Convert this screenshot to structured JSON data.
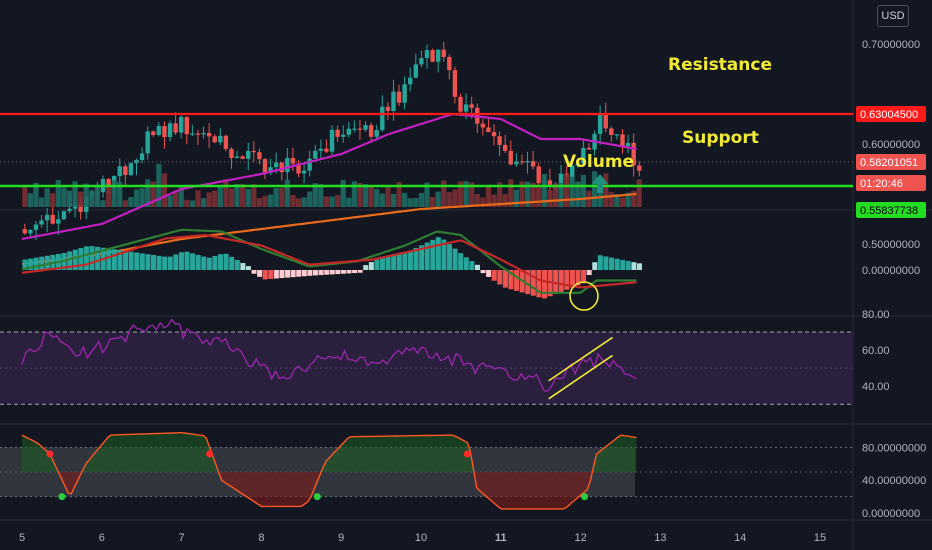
{
  "currency_button": "USD",
  "annotations": {
    "resistance": "Resistance",
    "support": "Support",
    "volume": "Volume"
  },
  "colors": {
    "background": "#131722",
    "up": "#26a69a",
    "down": "#ef5350",
    "resistance": "#ff1a1a",
    "support": "#22dd22",
    "ma_fast": "#c31fc3",
    "ma_slow": "#e86a1a",
    "annotation": "#f0ea37",
    "rsi_fill": "#2a1f3d",
    "rsi_line": "#9c27b0"
  },
  "chart_data": [
    {
      "type": "candlestick",
      "title": "",
      "x_ticks": [
        "5",
        "6",
        "7",
        "8",
        "9",
        "10",
        "11",
        "12",
        "13",
        "14",
        "15"
      ],
      "y_ticks": [
        "0.70000000",
        "0.60000000",
        "0.50000000"
      ],
      "ylim": [
        0.48,
        0.74
      ],
      "price_labels": {
        "resistance": "0.63004500",
        "last": "0.58201051",
        "countdown": "01:20:46",
        "support": "0.55837738"
      },
      "resistance": 0.63,
      "support": 0.558,
      "close_path": [
        [
          5.0,
          0.515
        ],
        [
          5.4,
          0.526
        ],
        [
          5.8,
          0.543
        ],
        [
          6.2,
          0.567
        ],
        [
          6.6,
          0.603
        ],
        [
          7.0,
          0.62
        ],
        [
          7.4,
          0.605
        ],
        [
          7.8,
          0.59
        ],
        [
          8.2,
          0.575
        ],
        [
          8.6,
          0.582
        ],
        [
          9.0,
          0.612
        ],
        [
          9.4,
          0.615
        ],
        [
          9.8,
          0.655
        ],
        [
          10.1,
          0.695
        ],
        [
          10.3,
          0.688
        ],
        [
          10.5,
          0.645
        ],
        [
          10.8,
          0.615
        ],
        [
          11.1,
          0.59
        ],
        [
          11.4,
          0.575
        ],
        [
          11.7,
          0.56
        ],
        [
          12.0,
          0.585
        ],
        [
          12.3,
          0.625
        ],
        [
          12.5,
          0.612
        ],
        [
          12.7,
          0.582
        ]
      ],
      "ma_fast": [
        [
          5.0,
          0.505
        ],
        [
          6.0,
          0.52
        ],
        [
          7.0,
          0.555
        ],
        [
          8.0,
          0.57
        ],
        [
          9.0,
          0.59
        ],
        [
          9.6,
          0.61
        ],
        [
          10.4,
          0.63
        ],
        [
          11.0,
          0.625
        ],
        [
          11.5,
          0.605
        ],
        [
          12.0,
          0.605
        ],
        [
          12.7,
          0.595
        ]
      ],
      "ma_slow": [
        [
          5.0,
          0.48
        ],
        [
          6.0,
          0.49
        ],
        [
          7.0,
          0.505
        ],
        [
          8.0,
          0.515
        ],
        [
          9.0,
          0.525
        ],
        [
          10.0,
          0.535
        ],
        [
          11.0,
          0.54
        ],
        [
          12.0,
          0.545
        ],
        [
          12.7,
          0.55
        ]
      ],
      "volume_highlight": "up"
    },
    {
      "type": "macd",
      "y_ticks": [
        "0.00000000"
      ],
      "macd": [
        [
          5.0,
          0.02
        ],
        [
          5.5,
          0.25
        ],
        [
          6.0,
          0.55
        ],
        [
          6.5,
          0.85
        ],
        [
          7.0,
          1.15
        ],
        [
          7.5,
          1.1
        ],
        [
          8.0,
          0.6
        ],
        [
          8.6,
          0.1
        ],
        [
          9.2,
          0.25
        ],
        [
          9.8,
          0.7
        ],
        [
          10.2,
          1.1
        ],
        [
          10.5,
          1.0
        ],
        [
          11.0,
          0.1
        ],
        [
          11.5,
          -0.65
        ],
        [
          12.0,
          -0.65
        ],
        [
          12.2,
          -0.3
        ],
        [
          12.7,
          -0.3
        ]
      ],
      "signal": [
        [
          5.0,
          -0.08
        ],
        [
          5.8,
          0.15
        ],
        [
          6.8,
          0.9
        ],
        [
          7.3,
          1.0
        ],
        [
          8.0,
          0.7
        ],
        [
          8.6,
          0.15
        ],
        [
          9.4,
          0.3
        ],
        [
          10.0,
          0.6
        ],
        [
          10.5,
          0.85
        ],
        [
          11.0,
          0.3
        ],
        [
          11.5,
          -0.3
        ],
        [
          12.0,
          -0.5
        ],
        [
          12.7,
          -0.35
        ]
      ]
    },
    {
      "type": "line",
      "name": "RSI",
      "y_ticks": [
        "80.00",
        "60.00",
        "40.00"
      ],
      "ylim": [
        22,
        87
      ],
      "bands": [
        70,
        30
      ],
      "values": [
        [
          5.0,
          55
        ],
        [
          5.3,
          68
        ],
        [
          5.7,
          58
        ],
        [
          6.0,
          62
        ],
        [
          6.4,
          70
        ],
        [
          6.8,
          75
        ],
        [
          7.2,
          66
        ],
        [
          7.6,
          62
        ],
        [
          8.0,
          50
        ],
        [
          8.3,
          45
        ],
        [
          8.6,
          53
        ],
        [
          9.0,
          56
        ],
        [
          9.4,
          52
        ],
        [
          9.8,
          58
        ],
        [
          10.2,
          59
        ],
        [
          10.5,
          53
        ],
        [
          10.9,
          48
        ],
        [
          11.3,
          45
        ],
        [
          11.6,
          40
        ],
        [
          12.0,
          52
        ],
        [
          12.3,
          55
        ],
        [
          12.5,
          48
        ],
        [
          12.7,
          44
        ]
      ],
      "trend_channel": [
        [
          [
            11.6,
            33
          ],
          [
            12.4,
            57
          ]
        ],
        [
          [
            11.6,
            43
          ],
          [
            12.4,
            67
          ]
        ]
      ]
    },
    {
      "type": "line",
      "name": "Stochastic",
      "y_ticks": [
        "80.00000000",
        "40.00000000",
        "0.00000000"
      ],
      "ylim": [
        -4,
        104
      ],
      "bands": [
        80,
        20
      ],
      "values": [
        [
          5.0,
          95
        ],
        [
          5.2,
          85
        ],
        [
          5.35,
          72
        ],
        [
          5.6,
          20
        ],
        [
          5.8,
          60
        ],
        [
          6.1,
          95
        ],
        [
          7.0,
          98
        ],
        [
          7.3,
          94
        ],
        [
          7.5,
          40
        ],
        [
          8.0,
          8
        ],
        [
          8.5,
          8
        ],
        [
          8.6,
          15
        ],
        [
          8.8,
          62
        ],
        [
          9.1,
          93
        ],
        [
          10.4,
          95
        ],
        [
          10.6,
          85
        ],
        [
          10.7,
          30
        ],
        [
          11.0,
          5
        ],
        [
          11.8,
          5
        ],
        [
          12.1,
          30
        ],
        [
          12.2,
          72
        ],
        [
          12.5,
          95
        ],
        [
          12.7,
          92
        ]
      ],
      "signals": [
        {
          "x": 5.35,
          "y": 72,
          "color": "red"
        },
        {
          "x": 5.5,
          "y": 20,
          "color": "green"
        },
        {
          "x": 7.35,
          "y": 72,
          "color": "red"
        },
        {
          "x": 8.7,
          "y": 20,
          "color": "green"
        },
        {
          "x": 10.58,
          "y": 72,
          "color": "red"
        },
        {
          "x": 12.05,
          "y": 20,
          "color": "green"
        }
      ]
    }
  ]
}
